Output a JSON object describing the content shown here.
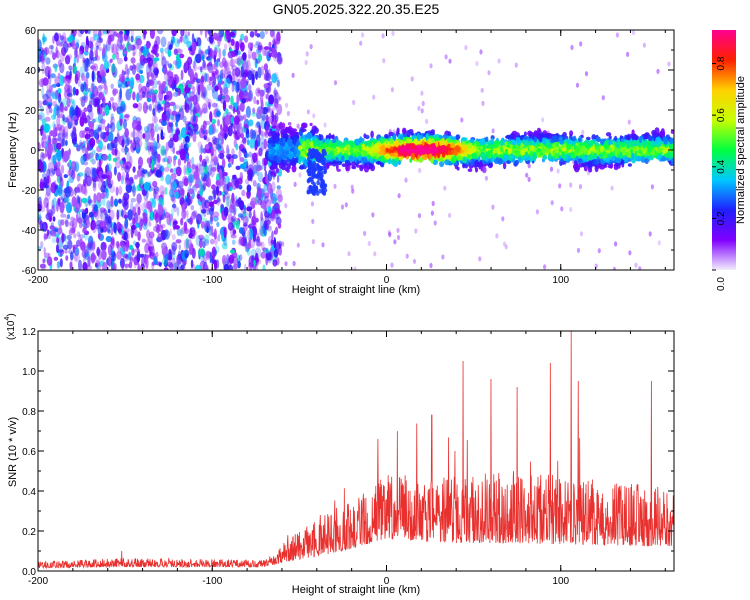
{
  "title": "GN05.2025.322.20.35.E25",
  "chart_data": [
    {
      "type": "heatmap",
      "title": "GN05.2025.322.20.35.E25",
      "xlabel": "Height of straight line (km)",
      "ylabel": "Frequency (Hz)",
      "xlim": [
        -200,
        165
      ],
      "ylim": [
        -60,
        60
      ],
      "x_ticks": [
        -200,
        -100,
        0,
        100
      ],
      "y_ticks": [
        -60,
        -40,
        -20,
        0,
        20,
        40,
        60
      ],
      "colorbar": {
        "label": "Normalized spectral amplitude",
        "range": [
          0,
          0.93
        ],
        "ticks": [
          "0.0",
          "0.2",
          "0.4",
          "0.6",
          "0.8"
        ],
        "tick_values": [
          0,
          0.2,
          0.4,
          0.6,
          0.8
        ],
        "colors": [
          "#f2eefc",
          "#8000ff",
          "#2020ff",
          "#00c8ff",
          "#00ff40",
          "#c8ff00",
          "#ffd000",
          "#ff2000",
          "#ff0090"
        ]
      },
      "regions": [
        {
          "name": "diffuse noise",
          "x_range": [
            -200,
            -67
          ],
          "freq_range": [
            -60,
            60
          ],
          "amplitude": 0.1
        },
        {
          "name": "signal band",
          "x_range": [
            -67,
            165
          ],
          "center_freq_hz": 0,
          "half_width_hz": 8,
          "peak_x_km": 20,
          "peak_amplitude": 0.9
        },
        {
          "name": "downward branch",
          "x_range": [
            -45,
            -35
          ],
          "freq_range": [
            -22,
            0
          ],
          "amplitude": 0.25
        }
      ]
    },
    {
      "type": "line",
      "xlabel": "Height of straight line (km)",
      "ylabel": "SNR (10 * v/v)",
      "y_exponent": "(x10",
      "y_exponent_power": "4",
      "xlim": [
        -200,
        165
      ],
      "ylim": [
        0,
        1.2
      ],
      "x_ticks": [
        -200,
        -100,
        0,
        100
      ],
      "y_ticks": [
        "0.0",
        "0.2",
        "0.4",
        "0.6",
        "0.8",
        "1.0",
        "1.2"
      ],
      "y_tick_values": [
        0,
        0.2,
        0.4,
        0.6,
        0.8,
        1.0,
        1.2
      ],
      "color": "#e8302e",
      "envelope": [
        {
          "x": -200,
          "baseline": 0.015,
          "noise": 0.035
        },
        {
          "x": -150,
          "baseline": 0.02,
          "noise": 0.045
        },
        {
          "x": -70,
          "baseline": 0.02,
          "noise": 0.035
        },
        {
          "x": -55,
          "baseline": 0.05,
          "noise": 0.12
        },
        {
          "x": -30,
          "baseline": 0.09,
          "noise": 0.22
        },
        {
          "x": 0,
          "baseline": 0.16,
          "noise": 0.32
        },
        {
          "x": 30,
          "baseline": 0.14,
          "noise": 0.34
        },
        {
          "x": 70,
          "baseline": 0.14,
          "noise": 0.36
        },
        {
          "x": 120,
          "baseline": 0.13,
          "noise": 0.33
        },
        {
          "x": 165,
          "baseline": 0.12,
          "noise": 0.3
        }
      ],
      "spikes": [
        {
          "x": -152,
          "y": 0.1
        },
        {
          "x": -38,
          "y": 0.28
        },
        {
          "x": -5,
          "y": 0.66
        },
        {
          "x": 26,
          "y": 0.78
        },
        {
          "x": 44,
          "y": 1.05
        },
        {
          "x": 60,
          "y": 0.96
        },
        {
          "x": 75,
          "y": 0.92
        },
        {
          "x": 94,
          "y": 1.04
        },
        {
          "x": 106,
          "y": 1.21
        },
        {
          "x": 110,
          "y": 0.95
        },
        {
          "x": 152,
          "y": 0.95
        }
      ]
    }
  ]
}
